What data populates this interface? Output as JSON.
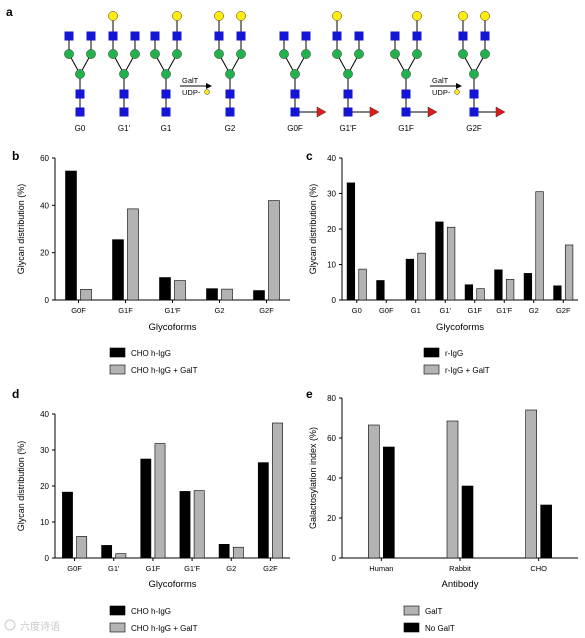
{
  "panel_letters": {
    "a": "a",
    "b": "b",
    "c": "c",
    "d": "d",
    "e": "e"
  },
  "glycan_panel": {
    "group_left": [
      "G0",
      "G1'",
      "G1",
      "G2"
    ],
    "group_right": [
      "G0F",
      "G1'F",
      "G1F",
      "G2F"
    ],
    "enzyme_label": "GalT",
    "donor_label": "UDP-",
    "colors": {
      "square": "#1515d6",
      "circle": "#22b24c",
      "galactose": "#ffee00",
      "fucose": "#e01b1b"
    }
  },
  "legends": {
    "b": [
      "CHO h-IgG",
      "CHO h-IgG + GalT"
    ],
    "c": [
      "r-IgG",
      "r-IgG + GalT"
    ],
    "d": [
      "CHO h-IgG",
      "CHO h-IgG + GalT"
    ],
    "e": [
      "GalT",
      "No GalT"
    ]
  },
  "watermark": "六度诗语",
  "chart_data": [
    {
      "panel": "b",
      "type": "bar",
      "categories": [
        "G0F",
        "G1F",
        "G1'F",
        "G2",
        "G2F"
      ],
      "series": [
        {
          "name": "CHO h-IgG",
          "color": "#000000",
          "values": [
            54.5,
            25.5,
            9.5,
            4.8,
            4.0
          ]
        },
        {
          "name": "CHO h-IgG + GalT",
          "color": "#b3b3b3",
          "values": [
            4.5,
            38.5,
            8.2,
            4.6,
            42.0
          ]
        }
      ],
      "xlabel": "Glycoforms",
      "ylabel": "Glycan distribution (%)",
      "ylim": [
        0,
        60
      ],
      "yticks": [
        0,
        20,
        40,
        60
      ],
      "grid": false,
      "legend": "bottom"
    },
    {
      "panel": "c",
      "type": "bar",
      "categories": [
        "G0",
        "G0F",
        "G1",
        "G1'",
        "G1F",
        "G1'F",
        "G2",
        "G2F"
      ],
      "series": [
        {
          "name": "r-IgG",
          "color": "#000000",
          "values": [
            33.0,
            5.5,
            11.5,
            22.0,
            4.3,
            8.5,
            7.5,
            4.0
          ]
        },
        {
          "name": "r-IgG + GalT",
          "color": "#b3b3b3",
          "values": [
            8.7,
            0,
            13.2,
            20.5,
            3.2,
            5.8,
            30.5,
            15.5
          ]
        }
      ],
      "xlabel": "Glycoforms",
      "ylabel": "Glycan distribution (%)",
      "ylim": [
        0,
        40
      ],
      "yticks": [
        0,
        10,
        20,
        30,
        40
      ],
      "grid": false,
      "legend": "bottom"
    },
    {
      "panel": "d",
      "type": "bar",
      "categories": [
        "G0F",
        "G1'",
        "G1F",
        "G1'F",
        "G2",
        "G2F"
      ],
      "series": [
        {
          "name": "CHO h-IgG",
          "color": "#000000",
          "values": [
            18.3,
            3.5,
            27.5,
            18.5,
            3.8,
            26.5
          ]
        },
        {
          "name": "CHO h-IgG + GalT",
          "color": "#b3b3b3",
          "values": [
            6.0,
            1.2,
            31.8,
            18.7,
            3.0,
            37.5
          ]
        }
      ],
      "xlabel": "Glycoforms",
      "ylabel": "Glycan distribution (%)",
      "ylim": [
        0,
        40
      ],
      "yticks": [
        0,
        10,
        20,
        30,
        40
      ],
      "grid": false,
      "legend": "bottom"
    },
    {
      "panel": "e",
      "type": "bar",
      "categories": [
        "Human",
        "Rabbit",
        "CHO"
      ],
      "series": [
        {
          "name": "GalT",
          "color": "#b3b3b3",
          "values": [
            66.5,
            68.5,
            74.0
          ]
        },
        {
          "name": "No GalT",
          "color": "#000000",
          "values": [
            55.5,
            36.0,
            26.5
          ]
        }
      ],
      "xlabel": "Antibody",
      "ylabel": "Galactosylation index (%)",
      "ylim": [
        0,
        80
      ],
      "yticks": [
        0,
        20,
        40,
        60,
        80
      ],
      "grid": false,
      "legend": "bottom"
    }
  ]
}
